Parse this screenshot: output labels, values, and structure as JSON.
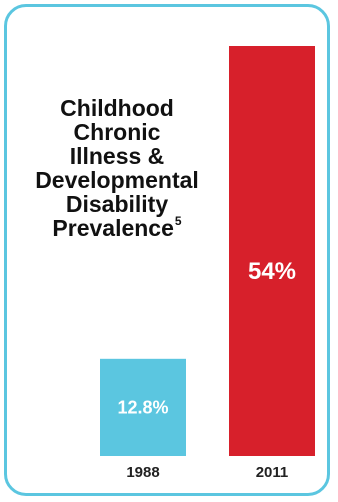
{
  "chart_data": {
    "type": "bar",
    "title_lines": [
      "Childhood",
      "Chronic",
      "Illness &",
      "Developmental",
      "Disability",
      "Prevalence"
    ],
    "title_superscript": "5",
    "categories": [
      "1988",
      "2011"
    ],
    "values": [
      12.8,
      54
    ],
    "data_labels": [
      "12.8%",
      "54%"
    ],
    "colors": [
      "#5bc6e0",
      "#d7202b"
    ],
    "ylim": [
      0,
      54
    ],
    "grid": false,
    "legend": "none"
  }
}
